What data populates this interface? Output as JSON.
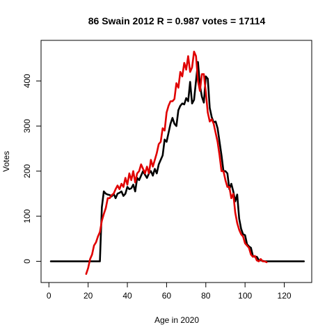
{
  "chart_data": {
    "type": "line",
    "title": "86 Swain 2012 R = 0.987 votes = 17114",
    "xlabel": "Age in 2020",
    "ylabel": "Votes",
    "xlim": [
      -4,
      134
    ],
    "ylim": [
      -47,
      490
    ],
    "x_ticks": [
      0,
      20,
      40,
      60,
      80,
      100,
      120
    ],
    "y_ticks": [
      0,
      100,
      200,
      300,
      400
    ],
    "grid": false,
    "colors": {
      "black_series": "#000000",
      "red_series": "#e00000"
    },
    "series": [
      {
        "color": "#000000",
        "points": [
          [
            1,
            0
          ],
          [
            26,
            0
          ],
          [
            27,
            120
          ],
          [
            28,
            155
          ],
          [
            29,
            150
          ],
          [
            30,
            148
          ],
          [
            31,
            147
          ],
          [
            32,
            144
          ],
          [
            33,
            150
          ],
          [
            34,
            140
          ],
          [
            35,
            150
          ],
          [
            36,
            152
          ],
          [
            37,
            155
          ],
          [
            38,
            145
          ],
          [
            39,
            150
          ],
          [
            40,
            165
          ],
          [
            41,
            160
          ],
          [
            42,
            162
          ],
          [
            43,
            170
          ],
          [
            44,
            155
          ],
          [
            45,
            185
          ],
          [
            46,
            180
          ],
          [
            47,
            190
          ],
          [
            48,
            200
          ],
          [
            49,
            192
          ],
          [
            50,
            185
          ],
          [
            51,
            195
          ],
          [
            52,
            200
          ],
          [
            53,
            190
          ],
          [
            54,
            205
          ],
          [
            55,
            195
          ],
          [
            56,
            215
          ],
          [
            57,
            225
          ],
          [
            58,
            235
          ],
          [
            59,
            270
          ],
          [
            60,
            265
          ],
          [
            61,
            285
          ],
          [
            62,
            305
          ],
          [
            63,
            318
          ],
          [
            64,
            305
          ],
          [
            65,
            300
          ],
          [
            66,
            335
          ],
          [
            67,
            345
          ],
          [
            68,
            350
          ],
          [
            69,
            348
          ],
          [
            70,
            362
          ],
          [
            71,
            355
          ],
          [
            72,
            398
          ],
          [
            73,
            350
          ],
          [
            74,
            358
          ],
          [
            75,
            400
          ],
          [
            76,
            442
          ],
          [
            77,
            390
          ],
          [
            78,
            365
          ],
          [
            79,
            352
          ],
          [
            80,
            410
          ],
          [
            81,
            405
          ],
          [
            82,
            340
          ],
          [
            83,
            320
          ],
          [
            84,
            308
          ],
          [
            85,
            310
          ],
          [
            86,
            295
          ],
          [
            87,
            265
          ],
          [
            88,
            235
          ],
          [
            89,
            200
          ],
          [
            90,
            200
          ],
          [
            91,
            195
          ],
          [
            92,
            160
          ],
          [
            93,
            172
          ],
          [
            94,
            155
          ],
          [
            95,
            133
          ],
          [
            96,
            148
          ],
          [
            97,
            95
          ],
          [
            98,
            72
          ],
          [
            99,
            60
          ],
          [
            100,
            58
          ],
          [
            101,
            38
          ],
          [
            102,
            33
          ],
          [
            103,
            30
          ],
          [
            104,
            12
          ],
          [
            105,
            10
          ],
          [
            106,
            10
          ],
          [
            107,
            3
          ],
          [
            108,
            2
          ],
          [
            109,
            1
          ],
          [
            110,
            0
          ],
          [
            111,
            0
          ],
          [
            130,
            0
          ]
        ]
      },
      {
        "color": "#e00000",
        "points": [
          [
            19,
            -28
          ],
          [
            20,
            -15
          ],
          [
            21,
            5
          ],
          [
            22,
            15
          ],
          [
            23,
            35
          ],
          [
            24,
            42
          ],
          [
            25,
            55
          ],
          [
            26,
            65
          ],
          [
            27,
            90
          ],
          [
            28,
            105
          ],
          [
            29,
            118
          ],
          [
            30,
            140
          ],
          [
            31,
            140
          ],
          [
            32,
            147
          ],
          [
            33,
            150
          ],
          [
            34,
            160
          ],
          [
            35,
            168
          ],
          [
            36,
            160
          ],
          [
            37,
            172
          ],
          [
            38,
            165
          ],
          [
            39,
            185
          ],
          [
            40,
            170
          ],
          [
            41,
            195
          ],
          [
            42,
            180
          ],
          [
            43,
            200
          ],
          [
            44,
            175
          ],
          [
            45,
            195
          ],
          [
            46,
            200
          ],
          [
            47,
            215
          ],
          [
            48,
            205
          ],
          [
            49,
            195
          ],
          [
            50,
            210
          ],
          [
            51,
            195
          ],
          [
            52,
            225
          ],
          [
            53,
            210
          ],
          [
            54,
            225
          ],
          [
            55,
            240
          ],
          [
            56,
            260
          ],
          [
            57,
            265
          ],
          [
            58,
            295
          ],
          [
            59,
            290
          ],
          [
            60,
            330
          ],
          [
            61,
            345
          ],
          [
            62,
            355
          ],
          [
            63,
            355
          ],
          [
            64,
            360
          ],
          [
            65,
            395
          ],
          [
            66,
            385
          ],
          [
            67,
            420
          ],
          [
            68,
            410
          ],
          [
            69,
            440
          ],
          [
            70,
            425
          ],
          [
            71,
            455
          ],
          [
            72,
            420
          ],
          [
            73,
            430
          ],
          [
            74,
            465
          ],
          [
            75,
            455
          ],
          [
            76,
            400
          ],
          [
            77,
            378
          ],
          [
            78,
            415
          ],
          [
            79,
            415
          ],
          [
            80,
            375
          ],
          [
            81,
            330
          ],
          [
            82,
            310
          ],
          [
            83,
            315
          ],
          [
            84,
            305
          ],
          [
            85,
            285
          ],
          [
            86,
            265
          ],
          [
            87,
            235
          ],
          [
            88,
            200
          ],
          [
            89,
            200
          ],
          [
            90,
            180
          ],
          [
            91,
            165
          ],
          [
            92,
            165
          ],
          [
            93,
            140
          ],
          [
            94,
            150
          ],
          [
            95,
            108
          ],
          [
            96,
            85
          ],
          [
            97,
            70
          ],
          [
            98,
            60
          ],
          [
            99,
            55
          ],
          [
            100,
            40
          ],
          [
            101,
            35
          ],
          [
            102,
            30
          ],
          [
            103,
            15
          ],
          [
            104,
            10
          ],
          [
            105,
            12
          ],
          [
            106,
            2
          ],
          [
            107,
            0
          ],
          [
            108,
            5
          ],
          [
            109,
            0
          ],
          [
            110,
            0
          ],
          [
            111,
            -2
          ]
        ]
      }
    ]
  }
}
